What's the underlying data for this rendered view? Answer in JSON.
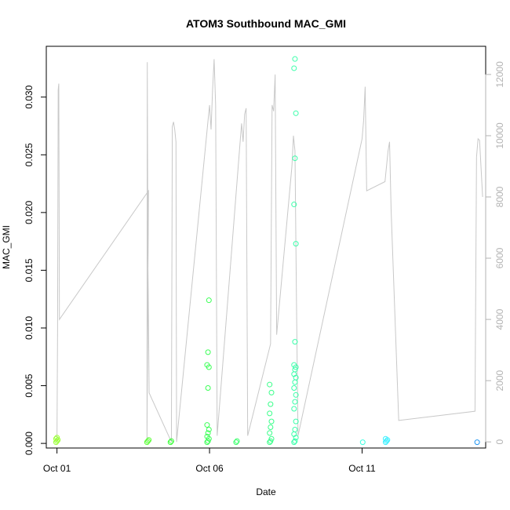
{
  "chart_data": {
    "type": "scatter",
    "title": "ATOM3 Southbound MAC_GMI",
    "xlabel": "Date",
    "ylabel": "MAC_GMI",
    "x_ticks": [
      {
        "day": 1,
        "label": "Oct 01"
      },
      {
        "day": 6,
        "label": "Oct 06"
      },
      {
        "day": 11,
        "label": "Oct 11"
      }
    ],
    "xlim": [
      0.65,
      15.05
    ],
    "ylim": [
      -0.0004,
      0.0344
    ],
    "y_ticks": [
      0.0,
      0.005,
      0.01,
      0.015,
      0.02,
      0.025,
      0.03
    ],
    "y_tick_labels": [
      "0.000",
      "0.005",
      "0.010",
      "0.015",
      "0.020",
      "0.025",
      "0.030"
    ],
    "y2lim": [
      -200,
      12920
    ],
    "y2_ticks": [
      0,
      2000,
      4000,
      6000,
      8000,
      10000,
      12000
    ],
    "y2_tick_labels": [
      "0",
      "2000",
      "4000",
      "6000",
      "8000",
      "10000",
      "12000"
    ],
    "grid": false,
    "series_line_color": "#c8c8c8",
    "counts_line": [
      [
        1.0,
        0
      ],
      [
        1.02,
        3700
      ],
      [
        1.04,
        11500
      ],
      [
        1.06,
        11700
      ],
      [
        1.08,
        4000
      ],
      [
        4.0,
        8200
      ],
      [
        3.95,
        0
      ],
      [
        3.96,
        12400
      ],
      [
        3.98,
        6200
      ],
      [
        4.02,
        1600
      ],
      [
        4.75,
        0
      ],
      [
        4.78,
        10300
      ],
      [
        4.82,
        10450
      ],
      [
        4.86,
        10200
      ],
      [
        4.9,
        9800
      ],
      [
        4.92,
        0
      ],
      [
        6.0,
        11000
      ],
      [
        6.05,
        10200
      ],
      [
        6.1,
        11500
      ],
      [
        6.15,
        12500
      ],
      [
        6.2,
        11000
      ],
      [
        6.25,
        200
      ],
      [
        7.05,
        10400
      ],
      [
        7.1,
        9800
      ],
      [
        7.15,
        10700
      ],
      [
        7.2,
        10900
      ],
      [
        7.25,
        200
      ],
      [
        8.0,
        3200
      ],
      [
        8.05,
        11000
      ],
      [
        8.1,
        10800
      ],
      [
        8.15,
        12000
      ],
      [
        8.2,
        3500
      ],
      [
        8.7,
        9000
      ],
      [
        8.75,
        10000
      ],
      [
        8.8,
        9500
      ],
      [
        8.85,
        4500
      ],
      [
        8.9,
        200
      ],
      [
        11.0,
        9900
      ],
      [
        11.05,
        10500
      ],
      [
        11.1,
        11600
      ],
      [
        11.15,
        8200
      ],
      [
        11.75,
        8500
      ],
      [
        11.8,
        9000
      ],
      [
        11.85,
        9500
      ],
      [
        11.9,
        9800
      ],
      [
        11.95,
        7600
      ],
      [
        12.2,
        700
      ],
      [
        14.7,
        1000
      ],
      [
        14.75,
        9300
      ],
      [
        14.8,
        9900
      ],
      [
        14.85,
        9850
      ],
      [
        14.95,
        8000
      ]
    ],
    "series_points": [
      {
        "day": 1.0,
        "values": [
          0.0001,
          0.0002,
          0.0003,
          0.0004,
          0.0005
        ],
        "color": "#9cff3a"
      },
      {
        "day": 3.98,
        "values": [
          0.0001,
          0.0002,
          0.0003
        ],
        "color": "#5dff3a"
      },
      {
        "day": 4.75,
        "values": [
          0.0001,
          0.0002
        ],
        "color": "#3aff3a"
      },
      {
        "day": 5.95,
        "values": [
          0.0001,
          0.0002,
          0.0004,
          0.0006,
          0.0009,
          0.0012,
          0.0016,
          0.0048,
          0.0066,
          0.0068,
          0.0079,
          0.0124
        ],
        "color": "#3aff55"
      },
      {
        "day": 6.9,
        "values": [
          0.0001,
          0.0002
        ],
        "color": "#3aff6c"
      },
      {
        "day": 8.0,
        "values": [
          0.0001,
          0.0002,
          0.0004,
          0.0009,
          0.0014,
          0.0019,
          0.0026,
          0.0034,
          0.0044,
          0.0051
        ],
        "color": "#3aff8a"
      },
      {
        "day": 8.8,
        "values": [
          0.0001,
          0.0002,
          0.0005,
          0.0008,
          0.0012,
          0.0019,
          0.003,
          0.0036,
          0.0042,
          0.0048,
          0.0053,
          0.0057,
          0.006,
          0.0064,
          0.0066,
          0.0068,
          0.0088,
          0.0173,
          0.0207,
          0.0247,
          0.0286,
          0.0325,
          0.0333
        ],
        "color": "#3affaa"
      },
      {
        "day": 11.05,
        "values": [
          0.0001
        ],
        "color": "#3affe0"
      },
      {
        "day": 11.8,
        "values": [
          0.0001,
          0.0002,
          0.0003,
          0.0004
        ],
        "color": "#3af0ff"
      },
      {
        "day": 14.8,
        "values": [
          0.0001
        ],
        "color": "#2196f3"
      }
    ]
  }
}
